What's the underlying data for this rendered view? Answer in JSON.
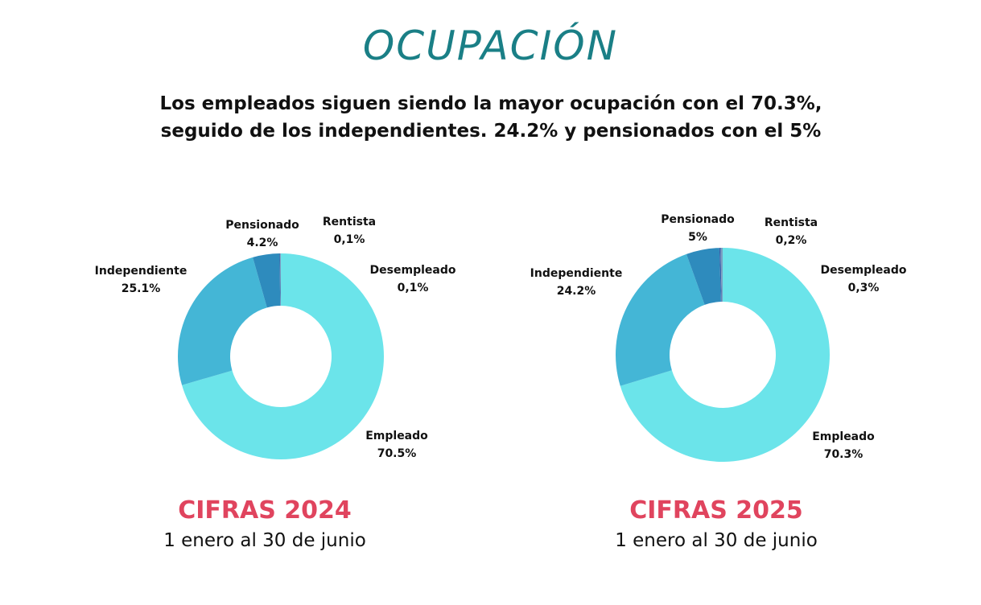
{
  "header": {
    "title": "OCUPACIÓN",
    "subtitle_line1": "Los empleados siguen siendo la mayor ocupación con el 70.3%,",
    "subtitle_line2": "seguido de los independientes. 24.2% y pensionados con el 5%"
  },
  "colors": {
    "empleado": "#6be4ea",
    "independiente": "#44b6d6",
    "pensionado": "#2e8bbd",
    "rentista": "#3b5ea8",
    "desempleado": "#7aa0c2"
  },
  "chart_data": [
    {
      "type": "pie",
      "title": "CIFRAS 2024",
      "subtitle": "1 enero al 30 de junio",
      "slices": [
        {
          "key": "empleado",
          "label": "Empleado",
          "value_text": "70.5%",
          "value": 70.5
        },
        {
          "key": "independiente",
          "label": "Independiente",
          "value_text": "25.1%",
          "value": 25.1
        },
        {
          "key": "pensionado",
          "label": "Pensionado",
          "value_text": "4.2%",
          "value": 4.2
        },
        {
          "key": "rentista",
          "label": "Rentista",
          "value_text": "0,1%",
          "value": 0.1
        },
        {
          "key": "desempleado",
          "label": "Desempleado",
          "value_text": "0,1%",
          "value": 0.1
        }
      ]
    },
    {
      "type": "pie",
      "title": "CIFRAS 2025",
      "subtitle": "1 enero al 30 de junio",
      "slices": [
        {
          "key": "empleado",
          "label": "Empleado",
          "value_text": "70.3%",
          "value": 70.3
        },
        {
          "key": "independiente",
          "label": "Independiente",
          "value_text": "24.2%",
          "value": 24.2
        },
        {
          "key": "pensionado",
          "label": "Pensionado",
          "value_text": "5%",
          "value": 5
        },
        {
          "key": "rentista",
          "label": "Rentista",
          "value_text": "0,2%",
          "value": 0.2
        },
        {
          "key": "desempleado",
          "label": "Desempleado",
          "value_text": "0,3%",
          "value": 0.3
        }
      ]
    }
  ]
}
